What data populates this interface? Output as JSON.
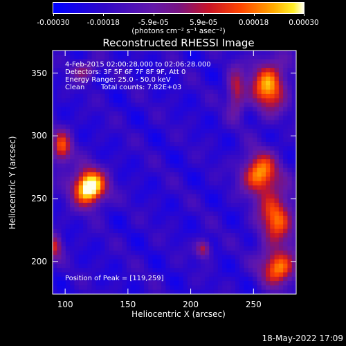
{
  "chart_data": {
    "type": "heatmap",
    "title": "Reconstructed RHESSI Image",
    "xlabel": "Heliocentric X (arcsec)",
    "ylabel": "Heliocentric Y (arcsec)",
    "xlim": [
      90,
      284
    ],
    "ylim": [
      174,
      368
    ],
    "x_ticks": [
      "100",
      "150",
      "200",
      "250"
    ],
    "y_ticks": [
      "200",
      "250",
      "300",
      "350"
    ],
    "colorbar": {
      "range": [
        -0.0003,
        0.0003
      ],
      "ticks": [
        "-0.00030",
        "-0.00018",
        "-5.9e-05",
        "5.9e-05",
        "0.00018",
        "0.00030"
      ],
      "unit": "(photons cm⁻² s⁻¹ asec⁻²)"
    },
    "annotations": {
      "time_range": "4-Feb-2015 02:00:28.000 to 02:06:28.000",
      "detectors": "Detectors: 3F 5F 6F 7F 8F 9F, Att 0",
      "energy": "Energy Range: 25.0 - 50.0 keV",
      "method": "Clean",
      "counts": "Total counts: 7.82E+03",
      "peak": "Position of Peak = [119,259]"
    },
    "sources": [
      {
        "x": 119,
        "y": 259,
        "rx": 13,
        "ry": 14,
        "amp": 1.0
      },
      {
        "x": 97,
        "y": 290,
        "rx": 8,
        "ry": 14,
        "amp": 0.55
      },
      {
        "x": 92,
        "y": 212,
        "rx": 6,
        "ry": 10,
        "amp": 0.45
      },
      {
        "x": 255,
        "y": 270,
        "rx": 14,
        "ry": 16,
        "amp": 0.7
      },
      {
        "x": 268,
        "y": 235,
        "rx": 14,
        "ry": 22,
        "amp": 0.6
      },
      {
        "x": 270,
        "y": 195,
        "rx": 14,
        "ry": 14,
        "amp": 0.65
      },
      {
        "x": 262,
        "y": 340,
        "rx": 14,
        "ry": 20,
        "amp": 0.7
      },
      {
        "x": 236,
        "y": 335,
        "rx": 7,
        "ry": 18,
        "amp": 0.45
      },
      {
        "x": 210,
        "y": 210,
        "rx": 6,
        "ry": 7,
        "amp": 0.45
      },
      {
        "x": 115,
        "y": 352,
        "rx": 10,
        "ry": 8,
        "amp": 0.35
      }
    ]
  },
  "footer": {
    "timestamp": "18-May-2022 17:09"
  }
}
